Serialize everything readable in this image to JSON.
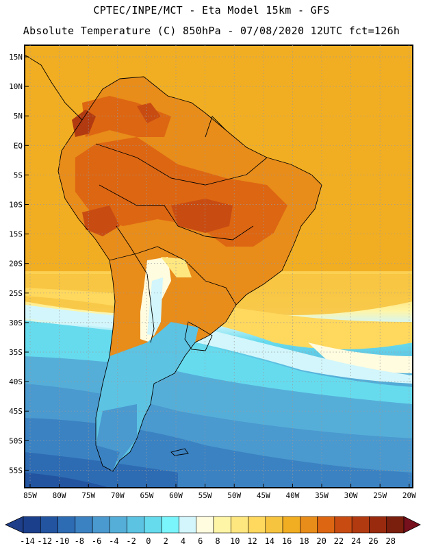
{
  "header": {
    "line1": "CPTEC/INPE/MCT -  Eta Model 15km - GFS",
    "line2": "Absolute Temperature (C) 850hPa - 07/08/2020 12UTC fct=126h"
  },
  "map": {
    "lat_labels": [
      "15N",
      "10N",
      "5N",
      "EQ",
      "5S",
      "10S",
      "15S",
      "20S",
      "25S",
      "30S",
      "35S",
      "40S",
      "45S",
      "50S",
      "55S"
    ],
    "lon_labels": [
      "85W",
      "80W",
      "75W",
      "70W",
      "65W",
      "60W",
      "55W",
      "50W",
      "45W",
      "40W",
      "35W",
      "30W",
      "25W",
      "20W"
    ],
    "region": "South America"
  },
  "colorbar": {
    "labels": [
      "-14",
      "-12",
      "-10",
      "-8",
      "-6",
      "-4",
      "-2",
      "0",
      "2",
      "4",
      "6",
      "8",
      "10",
      "12",
      "14",
      "16",
      "18",
      "20",
      "22",
      "24",
      "26",
      "28"
    ],
    "colors": [
      "#1c3f8c",
      "#2354a0",
      "#2d6bb3",
      "#3b82c2",
      "#4a99cf",
      "#55aed8",
      "#5cc3e3",
      "#66dbee",
      "#7af5fb",
      "#d2f6fb",
      "#fffce0",
      "#fff5a6",
      "#ffe780",
      "#ffd85e",
      "#f7c440",
      "#f2ae22",
      "#e88c1a",
      "#dd6612",
      "#c84c12",
      "#b23a10",
      "#992a0e",
      "#7a1e0e"
    ],
    "under_color": "#1e3e8a",
    "over_color": "#75101c"
  }
}
